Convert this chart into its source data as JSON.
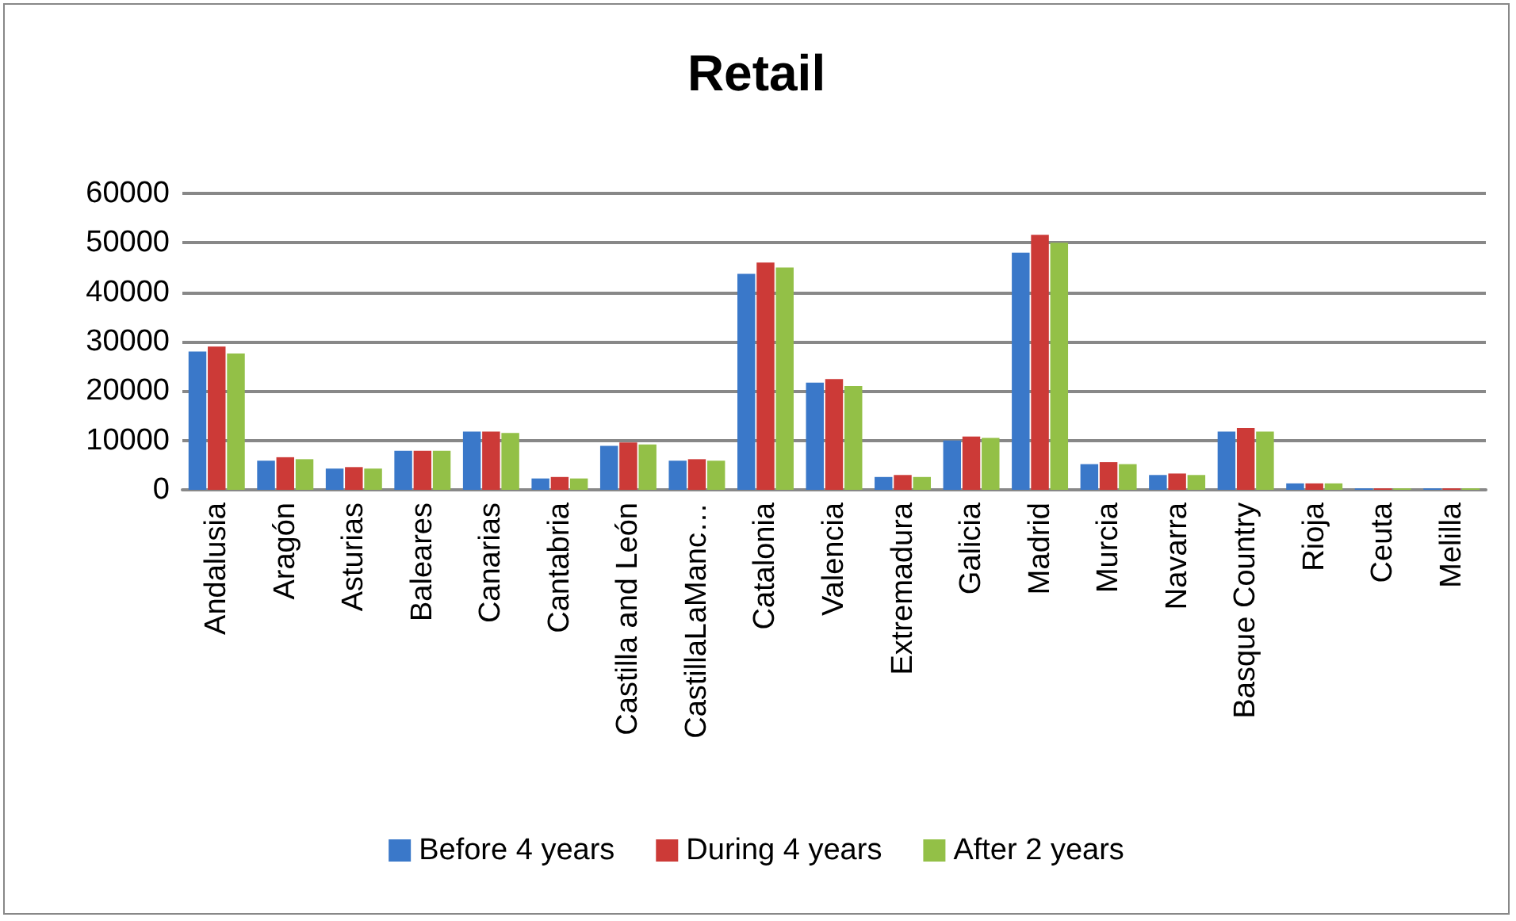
{
  "chart_data": {
    "type": "bar",
    "title": "Retail",
    "categories": [
      "Andalusia",
      "Aragón",
      "Asturias",
      "Baleares",
      "Canarias",
      "Cantabria",
      "Castilla and León",
      "CastillaLaManc…",
      "Catalonia",
      "Valencia",
      "Extremadura",
      "Galicia",
      "Madrid",
      "Murcia",
      "Navarra",
      "Basque Country",
      "Rioja",
      "Ceuta",
      "Melilla"
    ],
    "series": [
      {
        "name": "Before 4 years",
        "color": "#3a78c9",
        "values": [
          28000,
          5900,
          4300,
          7900,
          11800,
          2300,
          8900,
          5900,
          43700,
          21700,
          2600,
          10000,
          48000,
          5200,
          3000,
          11800,
          1300,
          300,
          300
        ]
      },
      {
        "name": "During 4 years",
        "color": "#cc3a37",
        "values": [
          29000,
          6600,
          4600,
          7900,
          11800,
          2600,
          9600,
          6200,
          46000,
          22400,
          3000,
          10800,
          51600,
          5600,
          3300,
          12500,
          1300,
          300,
          300
        ]
      },
      {
        "name": "After 2 years",
        "color": "#93c047",
        "values": [
          27600,
          6200,
          4300,
          7900,
          11500,
          2300,
          9200,
          5900,
          45000,
          21000,
          2600,
          10500,
          50000,
          5200,
          3000,
          11800,
          1300,
          300,
          300
        ]
      }
    ],
    "ylim": [
      0,
      60000
    ],
    "yticks": [
      0,
      10000,
      20000,
      30000,
      40000,
      50000,
      60000
    ],
    "grid": "y",
    "legend": "bottom"
  }
}
